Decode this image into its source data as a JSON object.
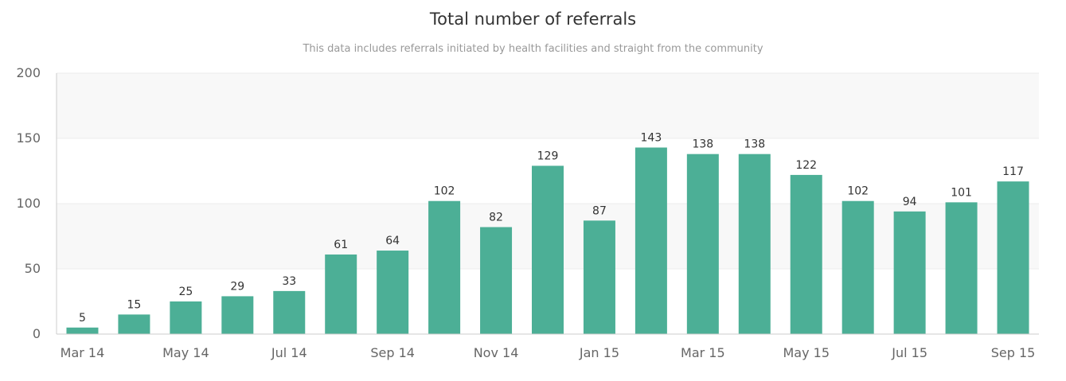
{
  "chart_data": {
    "type": "bar",
    "title": "Total number of referrals",
    "subtitle": "This data includes referrals initiated by health facilities and straight from the community",
    "categories": [
      "Mar 14",
      "Apr 14",
      "May 14",
      "Jun 14",
      "Jul 14",
      "Aug 14",
      "Sep 14",
      "Oct 14",
      "Nov 14",
      "Dec 14",
      "Jan 15",
      "Feb 15",
      "Mar 15",
      "Apr 15",
      "May 15",
      "Jun 15",
      "Jul 15",
      "Aug 15",
      "Sep 15"
    ],
    "x_tick_labels": [
      "Mar 14",
      "May 14",
      "Jul 14",
      "Sep 14",
      "Nov 14",
      "Jan 15",
      "Mar 15",
      "May 15",
      "Jul 15",
      "Sep 15"
    ],
    "values": [
      5,
      15,
      25,
      29,
      33,
      61,
      64,
      102,
      82,
      129,
      87,
      143,
      138,
      138,
      122,
      102,
      94,
      101,
      117
    ],
    "ylim": [
      0,
      200
    ],
    "yticks": [
      0,
      50,
      100,
      150,
      200
    ],
    "xlabel": "",
    "ylabel": "",
    "bar_color": "#4caf96",
    "band_color": "#f8f8f8",
    "data_labels": true,
    "legend": "none"
  }
}
